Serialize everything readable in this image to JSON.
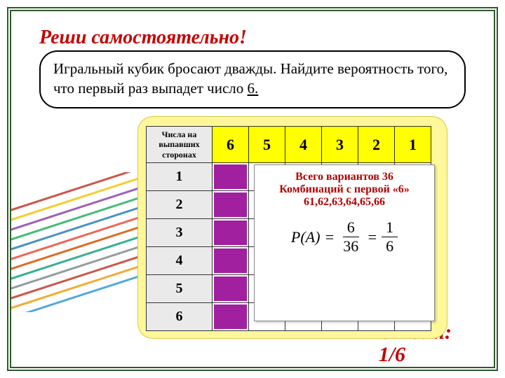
{
  "title": "Реши самостоятельно!",
  "problem": {
    "text_a": "Игральный кубик бросают дважды. Найдите вероятность того, что первый раз выпадет число ",
    "six": "6.",
    "text_b": ""
  },
  "table": {
    "row_header": "Числа на выпавших сторонах",
    "cols": [
      "6",
      "5",
      "4",
      "3",
      "2",
      "1"
    ],
    "rows": [
      "1",
      "2",
      "3",
      "4",
      "5",
      "6"
    ]
  },
  "overlay": {
    "line1": "Всего  вариантов 36",
    "line2": "Комбинаций с первой «6»",
    "line3": "61,62,63,64,65,66",
    "formula": {
      "lhs": "P(A)",
      "n1": "6",
      "d1": "36",
      "n2": "1",
      "d2": "6"
    }
  },
  "answer": {
    "label": "Ответ",
    "value": "1/6"
  },
  "streak_colors": [
    "#c0392b",
    "#f1c40f",
    "#8e44ad",
    "#27ae60",
    "#2980b9",
    "#e74c3c",
    "#d35400",
    "#16a085",
    "#7f8c8d",
    "#c0392b",
    "#f39c12",
    "#3498db"
  ],
  "colors": {
    "accent_red": "#c40000",
    "yellow_box": "#fff79a",
    "col_head": "#ffff00",
    "mark": "#a020a0",
    "side_bg": "#eaeaea",
    "frame": "#2e5a2e"
  }
}
